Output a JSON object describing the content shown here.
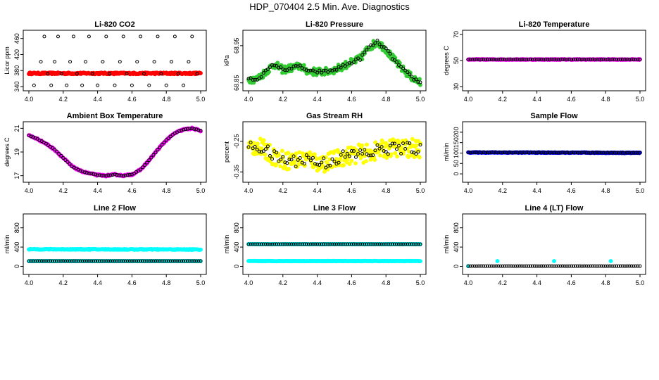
{
  "page": {
    "title": "HDP_070404  2.5 Min. Ave. Diagnostics"
  },
  "colors": {
    "red": "#ff0000",
    "green": "#33cc33",
    "magenta": "#ff00ff",
    "yellow": "#ffff00",
    "blue": "#0000ff",
    "cyan": "#00ffff",
    "black": "#000000"
  },
  "chart_data": [
    {
      "type": "scatter",
      "title": "Li-820 CO2",
      "ylabel": "Licor ppm",
      "xlim": [
        4.0,
        5.0
      ],
      "ylim": [
        340,
        470
      ],
      "xticks": [
        "4.0",
        "4.2",
        "4.4",
        "4.6",
        "4.8",
        "5.0"
      ],
      "yticks": [
        "340",
        "380",
        "420",
        "460"
      ],
      "series": [
        {
          "name": "raw",
          "color": "red",
          "shape": "band",
          "x": [
            4.0,
            5.0
          ],
          "y": [
            373,
            373
          ],
          "spread": 2
        },
        {
          "name": "avg",
          "color": "black",
          "points": [
            [
              4.03,
              343
            ],
            [
              4.07,
              402
            ],
            [
              4.09,
              465
            ],
            [
              4.11,
              372
            ],
            [
              4.13,
              343
            ],
            [
              4.15,
              402
            ],
            [
              4.17,
              465
            ],
            [
              4.19,
              372
            ],
            [
              4.22,
              343
            ],
            [
              4.24,
              402
            ],
            [
              4.26,
              465
            ],
            [
              4.28,
              372
            ],
            [
              4.31,
              343
            ],
            [
              4.33,
              402
            ],
            [
              4.35,
              465
            ],
            [
              4.37,
              372
            ],
            [
              4.4,
              343
            ],
            [
              4.43,
              402
            ],
            [
              4.45,
              465
            ],
            [
              4.47,
              372
            ],
            [
              4.5,
              343
            ],
            [
              4.53,
              402
            ],
            [
              4.55,
              465
            ],
            [
              4.57,
              372
            ],
            [
              4.6,
              343
            ],
            [
              4.63,
              402
            ],
            [
              4.65,
              465
            ],
            [
              4.67,
              372
            ],
            [
              4.7,
              343
            ],
            [
              4.73,
              402
            ],
            [
              4.75,
              465
            ],
            [
              4.77,
              372
            ],
            [
              4.8,
              343
            ],
            [
              4.83,
              402
            ],
            [
              4.85,
              465
            ],
            [
              4.87,
              372
            ],
            [
              4.9,
              343
            ],
            [
              4.93,
              402
            ],
            [
              4.95,
              465
            ],
            [
              4.98,
              372
            ]
          ]
        }
      ]
    },
    {
      "type": "scatter",
      "title": "Li-820 Pressure",
      "ylabel": "kPa",
      "xlim": [
        4.0,
        5.0
      ],
      "ylim": [
        68.84,
        68.98
      ],
      "xticks": [
        "4.0",
        "4.2",
        "4.4",
        "4.6",
        "4.8",
        "5.0"
      ],
      "yticks": [
        "68.85",
        "68.95"
      ],
      "series": [
        {
          "name": "raw",
          "color": "green",
          "shape": "trace",
          "spread": 0.01,
          "x": [
            4.0,
            4.05,
            4.1,
            4.15,
            4.2,
            4.25,
            4.3,
            4.35,
            4.4,
            4.45,
            4.5,
            4.55,
            4.6,
            4.65,
            4.7,
            4.75,
            4.8,
            4.85,
            4.9,
            4.95,
            5.0
          ],
          "y": [
            68.86,
            68.86,
            68.88,
            68.9,
            68.885,
            68.89,
            68.895,
            68.88,
            68.88,
            68.88,
            68.885,
            68.895,
            68.905,
            68.915,
            68.945,
            68.96,
            68.94,
            68.91,
            68.885,
            68.865,
            68.85
          ]
        },
        {
          "name": "avg",
          "color": "black",
          "shape": "trace",
          "spread": 0.004,
          "x": [
            4.0,
            4.05,
            4.1,
            4.15,
            4.2,
            4.25,
            4.3,
            4.35,
            4.4,
            4.45,
            4.5,
            4.55,
            4.6,
            4.65,
            4.7,
            4.75,
            4.8,
            4.85,
            4.9,
            4.95,
            5.0
          ],
          "y": [
            68.86,
            68.86,
            68.88,
            68.9,
            68.885,
            68.89,
            68.895,
            68.88,
            68.88,
            68.88,
            68.885,
            68.895,
            68.905,
            68.915,
            68.945,
            68.96,
            68.94,
            68.91,
            68.885,
            68.865,
            68.85
          ]
        }
      ]
    },
    {
      "type": "scatter",
      "title": "Li-820 Temperature",
      "ylabel": "degrees C",
      "xlim": [
        4.0,
        5.0
      ],
      "ylim": [
        30,
        70
      ],
      "xticks": [
        "4.0",
        "4.2",
        "4.4",
        "4.6",
        "4.8",
        "5.0"
      ],
      "yticks": [
        "30",
        "50",
        "70"
      ],
      "series": [
        {
          "name": "raw",
          "color": "magenta",
          "shape": "band",
          "x": [
            4.0,
            5.0
          ],
          "y": [
            50.8,
            50.8
          ],
          "spread": 0.3
        },
        {
          "name": "avg",
          "color": "black",
          "shape": "trace",
          "spread": 0.1,
          "x": [
            4.0,
            5.0
          ],
          "y": [
            50.8,
            50.8
          ]
        }
      ]
    },
    {
      "type": "scatter",
      "title": "Ambient Box Temperature",
      "ylabel": "degrees C",
      "xlim": [
        4.0,
        5.0
      ],
      "ylim": [
        16.8,
        21.2
      ],
      "xticks": [
        "4.0",
        "4.2",
        "4.4",
        "4.6",
        "4.8",
        "5.0"
      ],
      "yticks": [
        "17",
        "19",
        "21"
      ],
      "series": [
        {
          "name": "raw",
          "color": "magenta",
          "shape": "trace",
          "spread": 0.06,
          "x": [
            4.0,
            4.05,
            4.1,
            4.15,
            4.2,
            4.25,
            4.3,
            4.35,
            4.4,
            4.45,
            4.5,
            4.55,
            4.6,
            4.65,
            4.7,
            4.75,
            4.8,
            4.85,
            4.9,
            4.95,
            5.0
          ],
          "y": [
            20.4,
            20.1,
            19.7,
            19.2,
            18.5,
            17.8,
            17.4,
            17.2,
            17.05,
            17.0,
            17.1,
            17.0,
            17.1,
            17.5,
            18.3,
            19.2,
            20.0,
            20.6,
            20.9,
            21.0,
            20.8
          ]
        },
        {
          "name": "avg",
          "color": "black",
          "shape": "trace",
          "spread": 0.02,
          "x": [
            4.0,
            4.05,
            4.1,
            4.15,
            4.2,
            4.25,
            4.3,
            4.35,
            4.4,
            4.45,
            4.5,
            4.55,
            4.6,
            4.65,
            4.7,
            4.75,
            4.8,
            4.85,
            4.9,
            4.95,
            5.0
          ],
          "y": [
            20.4,
            20.1,
            19.7,
            19.2,
            18.5,
            17.8,
            17.4,
            17.2,
            17.05,
            17.0,
            17.1,
            17.0,
            17.1,
            17.5,
            18.3,
            19.2,
            20.0,
            20.6,
            20.9,
            21.0,
            20.8
          ]
        }
      ]
    },
    {
      "type": "scatter",
      "title": "Gas Stream RH",
      "ylabel": "percent",
      "xlim": [
        4.0,
        5.0
      ],
      "ylim": [
        -0.37,
        -0.2
      ],
      "xticks": [
        "4.0",
        "4.2",
        "4.4",
        "4.6",
        "4.8",
        "5.0"
      ],
      "yticks": [
        "-0.35",
        "-0.25"
      ],
      "series": [
        {
          "name": "raw",
          "color": "yellow",
          "shape": "trace",
          "spread": 0.03,
          "x": [
            4.0,
            4.05,
            4.1,
            4.15,
            4.2,
            4.25,
            4.3,
            4.35,
            4.4,
            4.45,
            4.5,
            4.55,
            4.6,
            4.65,
            4.7,
            4.75,
            4.8,
            4.85,
            4.9,
            4.95,
            5.0
          ],
          "y": [
            -0.27,
            -0.265,
            -0.28,
            -0.3,
            -0.31,
            -0.315,
            -0.31,
            -0.305,
            -0.32,
            -0.32,
            -0.31,
            -0.3,
            -0.295,
            -0.29,
            -0.29,
            -0.28,
            -0.275,
            -0.27,
            -0.275,
            -0.27,
            -0.28
          ]
        },
        {
          "name": "avg",
          "color": "black",
          "shape": "trace",
          "spread": 0.02,
          "x": [
            4.0,
            4.05,
            4.1,
            4.15,
            4.2,
            4.25,
            4.3,
            4.35,
            4.4,
            4.45,
            4.5,
            4.55,
            4.6,
            4.65,
            4.7,
            4.75,
            4.8,
            4.85,
            4.9,
            4.95,
            5.0
          ],
          "y": [
            -0.27,
            -0.265,
            -0.28,
            -0.3,
            -0.31,
            -0.315,
            -0.31,
            -0.305,
            -0.32,
            -0.32,
            -0.31,
            -0.3,
            -0.295,
            -0.29,
            -0.29,
            -0.28,
            -0.275,
            -0.27,
            -0.275,
            -0.27,
            -0.28
          ]
        }
      ]
    },
    {
      "type": "scatter",
      "title": "Sample Flow",
      "ylabel": "ml/min",
      "xlim": [
        4.0,
        5.0
      ],
      "ylim": [
        -20,
        230
      ],
      "xticks": [
        "4.0",
        "4.2",
        "4.4",
        "4.6",
        "4.8",
        "5.0"
      ],
      "yticks": [
        "0",
        "50",
        "100",
        "150",
        "200"
      ],
      "series": [
        {
          "name": "raw",
          "color": "blue",
          "shape": "band",
          "x": [
            4.0,
            5.0
          ],
          "y": [
            103,
            101
          ],
          "spread": 1.5
        },
        {
          "name": "avg",
          "color": "black",
          "shape": "trace",
          "spread": 0.5,
          "x": [
            4.0,
            5.0
          ],
          "y": [
            103,
            101
          ]
        }
      ]
    },
    {
      "type": "scatter",
      "title": "Line 2 Flow",
      "ylabel": "ml/min",
      "xlim": [
        4.0,
        5.0
      ],
      "ylim": [
        -80,
        1000
      ],
      "xticks": [
        "4.0",
        "4.2",
        "4.4",
        "4.6",
        "4.8",
        "5.0"
      ],
      "yticks": [
        "0",
        "400",
        "800"
      ],
      "series": [
        {
          "name": "raw-high",
          "color": "cyan",
          "shape": "band",
          "x": [
            4.0,
            5.0
          ],
          "y": [
            355,
            350
          ],
          "spread": 8
        },
        {
          "name": "raw-low",
          "color": "cyan",
          "shape": "band",
          "x": [
            4.0,
            5.0
          ],
          "y": [
            110,
            110
          ],
          "spread": 3
        },
        {
          "name": "avg",
          "color": "black",
          "shape": "trace",
          "spread": 1,
          "x": [
            4.0,
            5.0
          ],
          "y": [
            110,
            110
          ]
        }
      ]
    },
    {
      "type": "scatter",
      "title": "Line 3 Flow",
      "ylabel": "ml/min",
      "xlim": [
        4.0,
        5.0
      ],
      "ylim": [
        -80,
        1000
      ],
      "xticks": [
        "4.0",
        "4.2",
        "4.4",
        "4.6",
        "4.8",
        "5.0"
      ],
      "yticks": [
        "0",
        "400",
        "800"
      ],
      "series": [
        {
          "name": "raw-high",
          "color": "cyan",
          "shape": "band",
          "x": [
            4.0,
            5.0
          ],
          "y": [
            460,
            460
          ],
          "spread": 4
        },
        {
          "name": "raw-low",
          "color": "cyan",
          "shape": "band",
          "x": [
            4.0,
            5.0
          ],
          "y": [
            110,
            110
          ],
          "spread": 4
        },
        {
          "name": "avg",
          "color": "black",
          "shape": "trace",
          "spread": 1,
          "x": [
            4.0,
            5.0
          ],
          "y": [
            460,
            460
          ]
        }
      ]
    },
    {
      "type": "scatter",
      "title": "Line 4 (LT) Flow",
      "ylabel": "ml/min",
      "xlim": [
        4.0,
        5.0
      ],
      "ylim": [
        -80,
        1000
      ],
      "xticks": [
        "4.0",
        "4.2",
        "4.4",
        "4.6",
        "4.8",
        "5.0"
      ],
      "yticks": [
        "0",
        "400",
        "800"
      ],
      "series": [
        {
          "name": "raw",
          "color": "cyan",
          "points": [
            [
              4.0,
              5
            ],
            [
              4.17,
              110
            ],
            [
              4.5,
              110
            ],
            [
              4.83,
              110
            ]
          ]
        },
        {
          "name": "avg",
          "color": "black",
          "shape": "trace",
          "spread": 1,
          "x": [
            4.0,
            5.0
          ],
          "y": [
            5,
            5
          ]
        }
      ]
    }
  ]
}
